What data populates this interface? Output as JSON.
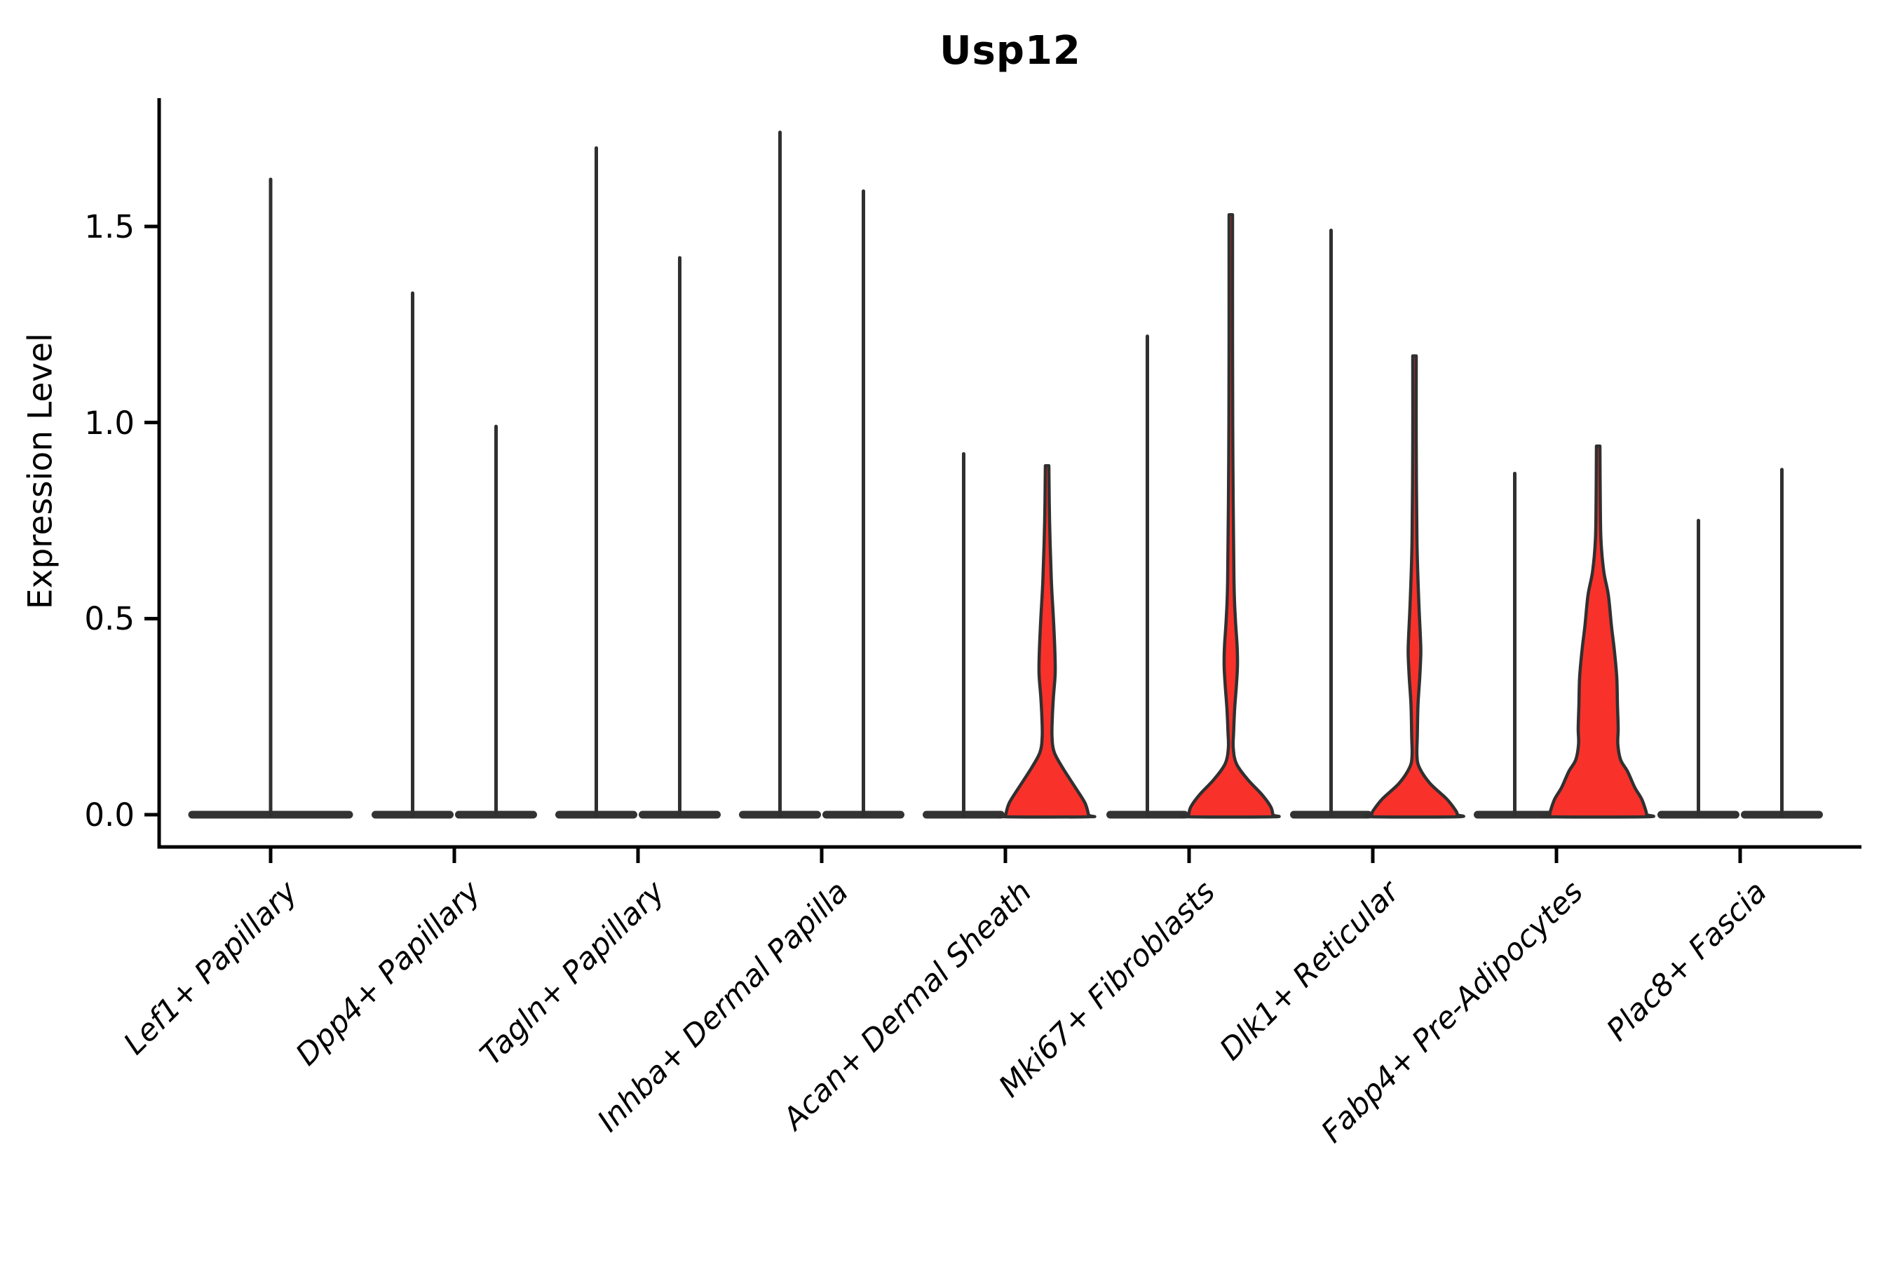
{
  "title": "Usp12",
  "y_axis_label": "Expression Level",
  "colors": {
    "violin_fill": "#f9312b",
    "violin_outline": "#303030",
    "base_slab": "#333333",
    "axis": "#000000",
    "text": "#000000",
    "background": "#ffffff"
  },
  "chart_data": {
    "type": "violin",
    "title": "Usp12",
    "xlabel": "",
    "ylabel": "Expression Level",
    "ylim": [
      -0.08,
      1.83
    ],
    "grid": false,
    "legend": null,
    "ytick_values": [
      0.0,
      0.5,
      1.0,
      1.5
    ],
    "ytick_labels": [
      "0.0",
      "0.5",
      "1.0",
      "1.5"
    ],
    "categories": [
      "Lef1+ Papillary",
      "Dpp4+ Papillary",
      "Tagln+ Papillary",
      "Inhba+ Dermal Papilla",
      "Acan+ Dermal Sheath",
      "Mki67+ Fibroblasts",
      "Dlk1+ Reticular",
      "Fabp4+ Pre-Adipocytes",
      "Plac8+ Fascia"
    ],
    "series": [
      {
        "category": "Lef1+ Papillary",
        "violins": [
          {
            "max_expression": 1.62,
            "filled": false,
            "layout": "single"
          }
        ]
      },
      {
        "category": "Dpp4+ Papillary",
        "violins": [
          {
            "max_expression": 1.33,
            "filled": false
          },
          {
            "max_expression": 0.99,
            "filled": false
          }
        ]
      },
      {
        "category": "Tagln+ Papillary",
        "violins": [
          {
            "max_expression": 1.7,
            "filled": false
          },
          {
            "max_expression": 1.42,
            "filled": false
          }
        ]
      },
      {
        "category": "Inhba+ Dermal Papilla",
        "violins": [
          {
            "max_expression": 1.74,
            "filled": false
          },
          {
            "max_expression": 1.59,
            "filled": false
          }
        ]
      },
      {
        "category": "Acan+ Dermal Sheath",
        "violins": [
          {
            "max_expression": 0.92,
            "filled": false
          },
          {
            "max_expression": 0.89,
            "filled": true,
            "profile": [
              [
                0.89,
                2.5
              ],
              [
                0.75,
                3.5
              ],
              [
                0.6,
                6
              ],
              [
                0.5,
                9
              ],
              [
                0.42,
                11
              ],
              [
                0.36,
                11.5
              ],
              [
                0.3,
                9
              ],
              [
                0.25,
                7.5
              ],
              [
                0.2,
                7
              ],
              [
                0.16,
                10
              ],
              [
                0.12,
                22
              ],
              [
                0.07,
                40
              ],
              [
                0.03,
                54
              ],
              [
                0.0,
                59
              ]
            ]
          }
        ]
      },
      {
        "category": "Mki67+ Fibroblasts",
        "violins": [
          {
            "max_expression": 1.22,
            "filled": false
          },
          {
            "max_expression": 1.53,
            "filled": true,
            "profile": [
              [
                1.53,
                2.5
              ],
              [
                1.2,
                2.5
              ],
              [
                0.9,
                3
              ],
              [
                0.6,
                4.5
              ],
              [
                0.5,
                6.5
              ],
              [
                0.43,
                9
              ],
              [
                0.38,
                9.5
              ],
              [
                0.33,
                8
              ],
              [
                0.27,
                5.5
              ],
              [
                0.21,
                4
              ],
              [
                0.17,
                3.5
              ],
              [
                0.13,
                8
              ],
              [
                0.09,
                24
              ],
              [
                0.05,
                45
              ],
              [
                0.02,
                57
              ],
              [
                0.0,
                60
              ]
            ]
          }
        ]
      },
      {
        "category": "Dlk1+ Reticular",
        "violins": [
          {
            "max_expression": 1.49,
            "filled": false
          },
          {
            "max_expression": 1.17,
            "filled": true,
            "profile": [
              [
                1.17,
                2.5
              ],
              [
                0.95,
                2.5
              ],
              [
                0.7,
                3.5
              ],
              [
                0.55,
                6
              ],
              [
                0.45,
                8.5
              ],
              [
                0.41,
                9
              ],
              [
                0.35,
                7.5
              ],
              [
                0.28,
                5
              ],
              [
                0.2,
                4
              ],
              [
                0.15,
                3.5
              ],
              [
                0.12,
                7
              ],
              [
                0.08,
                22
              ],
              [
                0.04,
                46
              ],
              [
                0.01,
                59
              ],
              [
                0.0,
                61
              ]
            ]
          }
        ]
      },
      {
        "category": "Fabp4+ Pre-Adipocytes",
        "violins": [
          {
            "max_expression": 0.87,
            "filled": false
          },
          {
            "max_expression": 0.94,
            "filled": true,
            "profile": [
              [
                0.94,
                2.5
              ],
              [
                0.8,
                3
              ],
              [
                0.7,
                4
              ],
              [
                0.62,
                8
              ],
              [
                0.56,
                14.5
              ],
              [
                0.48,
                19
              ],
              [
                0.42,
                23
              ],
              [
                0.35,
                26.5
              ],
              [
                0.28,
                27.5
              ],
              [
                0.22,
                28.5
              ],
              [
                0.18,
                28
              ],
              [
                0.14,
                32
              ],
              [
                0.11,
                42
              ],
              [
                0.07,
                52
              ],
              [
                0.04,
                62
              ],
              [
                0.01,
                68
              ],
              [
                0.0,
                69
              ]
            ]
          }
        ]
      },
      {
        "category": "Plac8+ Fascia",
        "violins": [
          {
            "max_expression": 0.75,
            "filled": false
          },
          {
            "max_expression": 0.88,
            "filled": false
          }
        ]
      }
    ]
  }
}
